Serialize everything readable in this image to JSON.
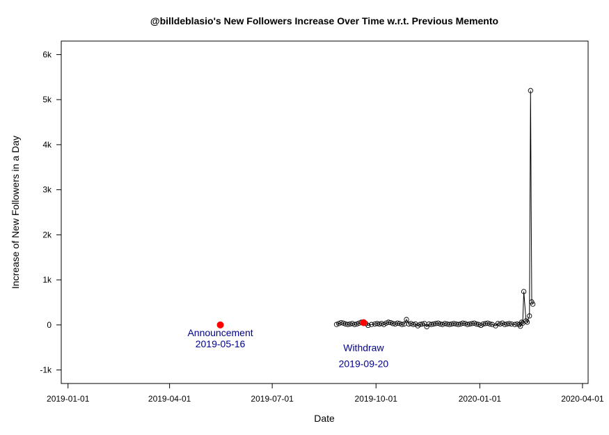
{
  "chart_data": {
    "type": "line",
    "title": "@billdeblasio's New Followers Increase Over Time w.r.t. Previous Memento",
    "xlabel": "Date",
    "ylabel": "Increase of New Followers in a Day",
    "xlim": [
      "2018-12-26",
      "2020-04-06"
    ],
    "ylim": [
      -1300,
      6300
    ],
    "x_ticks": [
      "2019-01-01",
      "2019-04-01",
      "2019-07-01",
      "2019-10-01",
      "2020-01-01",
      "2020-04-01"
    ],
    "y_ticks": [
      -1000,
      0,
      1000,
      2000,
      3000,
      4000,
      5000,
      6000
    ],
    "y_tick_labels": [
      "-1k",
      "0",
      "1k",
      "2k",
      "3k",
      "4k",
      "5k",
      "6k"
    ],
    "grid": false,
    "series": [
      {
        "x": [
          "2019-08-27",
          "2019-08-29",
          "2019-08-31",
          "2019-09-02",
          "2019-09-04",
          "2019-09-06",
          "2019-09-08",
          "2019-09-10",
          "2019-09-12",
          "2019-09-14",
          "2019-09-16",
          "2019-09-18",
          "2019-09-20",
          "2019-09-22",
          "2019-09-24",
          "2019-09-27",
          "2019-09-30",
          "2019-10-02",
          "2019-10-04",
          "2019-10-06",
          "2019-10-08",
          "2019-10-10",
          "2019-10-12",
          "2019-10-14",
          "2019-10-16",
          "2019-10-18",
          "2019-10-20",
          "2019-10-22",
          "2019-10-24",
          "2019-10-26",
          "2019-10-28",
          "2019-10-30",
          "2019-11-01",
          "2019-11-03",
          "2019-11-05",
          "2019-11-07",
          "2019-11-09",
          "2019-11-11",
          "2019-11-13",
          "2019-11-15",
          "2019-11-17",
          "2019-11-19",
          "2019-11-21",
          "2019-11-23",
          "2019-11-25",
          "2019-11-27",
          "2019-11-29",
          "2019-12-01",
          "2019-12-03",
          "2019-12-05",
          "2019-12-07",
          "2019-12-09",
          "2019-12-11",
          "2019-12-13",
          "2019-12-15",
          "2019-12-17",
          "2019-12-19",
          "2019-12-21",
          "2019-12-23",
          "2019-12-25",
          "2019-12-27",
          "2019-12-29",
          "2019-12-31",
          "2020-01-02",
          "2020-01-04",
          "2020-01-06",
          "2020-01-08",
          "2020-01-10",
          "2020-01-12",
          "2020-01-15",
          "2020-01-17",
          "2020-01-19",
          "2020-01-21",
          "2020-01-23",
          "2020-01-25",
          "2020-01-27",
          "2020-01-29",
          "2020-02-01",
          "2020-02-03",
          "2020-02-05",
          "2020-02-06",
          "2020-02-07",
          "2020-02-08",
          "2020-02-09",
          "2020-02-11",
          "2020-02-12",
          "2020-02-14",
          "2020-02-15",
          "2020-02-16",
          "2020-02-17"
        ],
        "y": [
          10,
          30,
          50,
          40,
          20,
          10,
          20,
          30,
          10,
          20,
          40,
          60,
          50,
          30,
          -10,
          10,
          20,
          30,
          20,
          30,
          10,
          40,
          60,
          50,
          30,
          20,
          40,
          30,
          10,
          20,
          120,
          20,
          30,
          10,
          20,
          -20,
          10,
          20,
          30,
          -40,
          20,
          10,
          20,
          30,
          40,
          20,
          10,
          30,
          20,
          10,
          20,
          30,
          20,
          10,
          20,
          40,
          30,
          10,
          20,
          30,
          40,
          20,
          10,
          -10,
          20,
          30,
          40,
          20,
          10,
          -20,
          30,
          20,
          40,
          10,
          20,
          30,
          20,
          10,
          20,
          10,
          -30,
          60,
          40,
          740,
          90,
          60,
          200,
          5200,
          510,
          460
        ],
        "color": "#000000"
      }
    ],
    "annotations": [
      {
        "date": "2019-05-16",
        "y": 0,
        "text": "Announcement",
        "date_label": "2019-05-16",
        "color": "#ff0000"
      },
      {
        "date": "2019-09-20",
        "y": 50,
        "text": "Withdraw",
        "date_label": "2019-09-20",
        "color": "#ff0000"
      }
    ]
  }
}
